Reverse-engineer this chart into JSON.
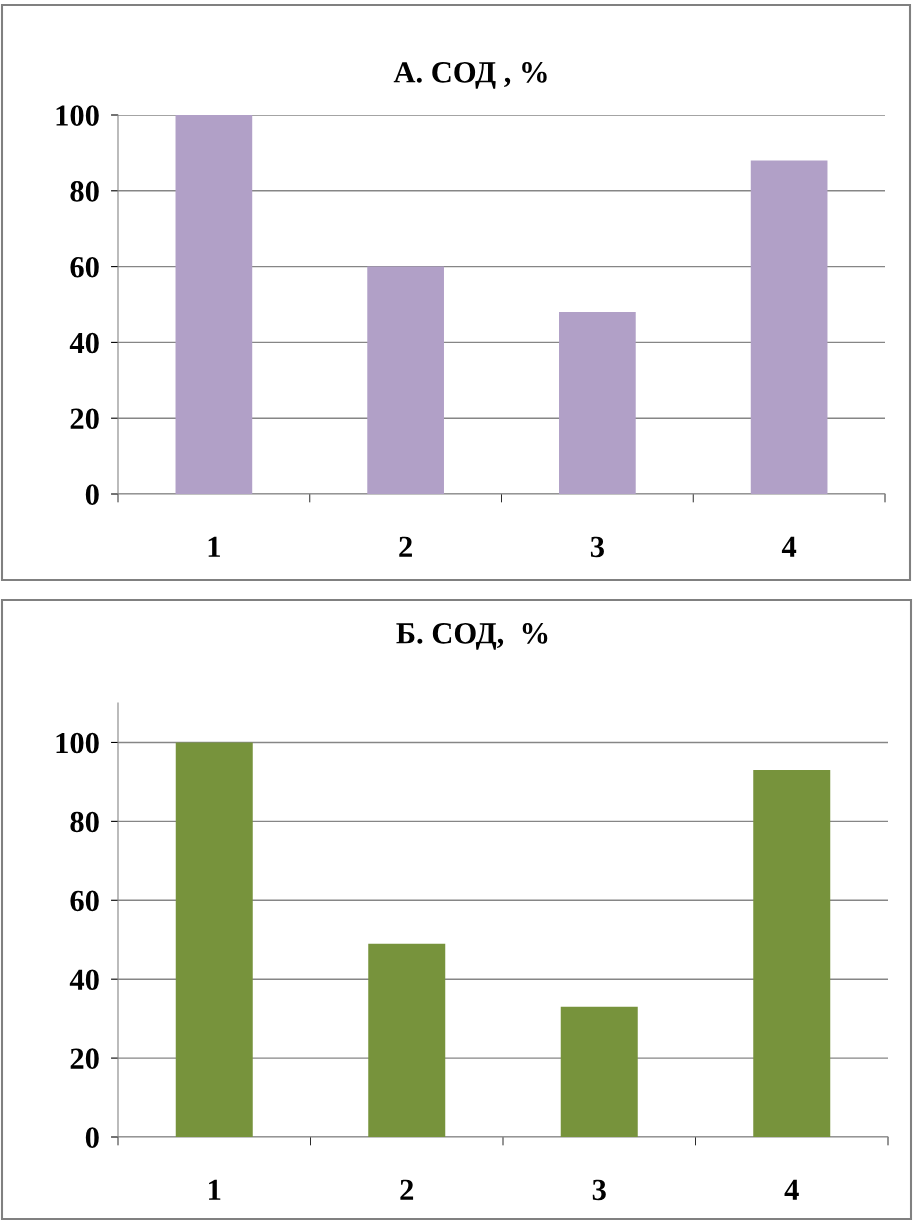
{
  "chart_data": [
    {
      "type": "bar",
      "title": "А. СОД , %",
      "categories": [
        "1",
        "2",
        "3",
        "4"
      ],
      "values": [
        100,
        60,
        48,
        88
      ],
      "color": "#b1a0c7",
      "ylim": [
        0,
        100
      ],
      "yticks": [
        0,
        20,
        40,
        60,
        80,
        100
      ],
      "grid": "y"
    },
    {
      "type": "bar",
      "title": "Б. СОД,  %",
      "categories": [
        "1",
        "2",
        "3",
        "4"
      ],
      "values": [
        100,
        49,
        33,
        93
      ],
      "color": "#77933c",
      "ylim": [
        0,
        110
      ],
      "yticks": [
        0,
        20,
        40,
        60,
        80,
        100
      ],
      "grid": "y"
    }
  ]
}
